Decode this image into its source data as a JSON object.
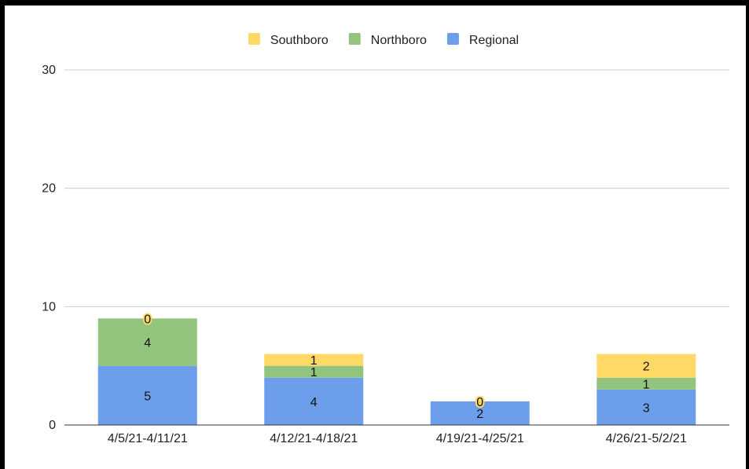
{
  "chart_data": {
    "type": "bar",
    "stacked": true,
    "categories": [
      "4/5/21-4/11/21",
      "4/12/21-4/18/21",
      "4/19/21-4/25/21",
      "4/26/21-5/2/21"
    ],
    "series": [
      {
        "name": "Regional",
        "values": [
          5,
          4,
          2,
          3
        ],
        "color": "#6d9eeb"
      },
      {
        "name": "Northboro",
        "values": [
          4,
          1,
          0,
          1
        ],
        "color": "#93c47d"
      },
      {
        "name": "Southboro",
        "values": [
          0,
          1,
          0,
          2
        ],
        "color": "#ffd966"
      }
    ],
    "legend_order": [
      "Southboro",
      "Northboro",
      "Regional"
    ],
    "legend_position": "top",
    "ylim": [
      0,
      30
    ],
    "yticks": [
      0,
      10,
      20,
      30
    ],
    "grid": true,
    "title": "",
    "xlabel": "",
    "ylabel": ""
  }
}
